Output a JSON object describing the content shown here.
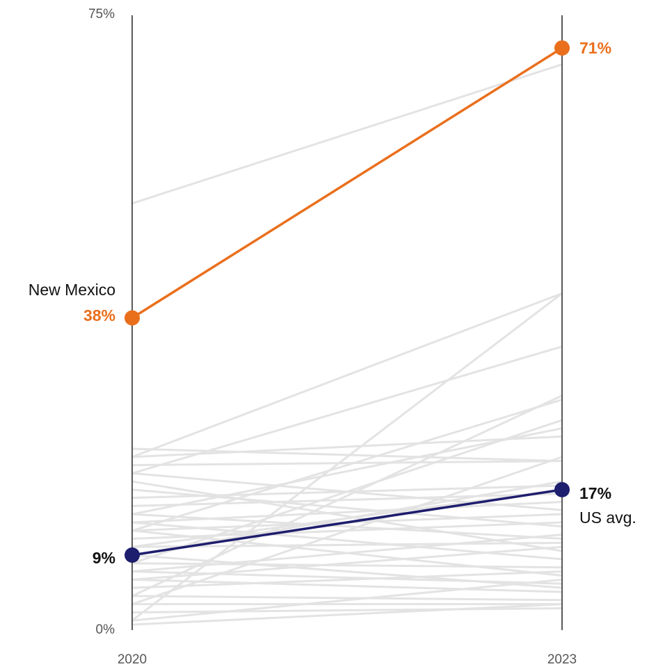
{
  "chart_data": {
    "type": "line",
    "x": [
      "2020",
      "2023"
    ],
    "ylim": [
      0,
      75
    ],
    "y_ticks": [
      "75%",
      "0%"
    ],
    "grid": false,
    "title": "",
    "xlabel": "",
    "ylabel": "",
    "highlight": [
      {
        "name": "New Mexico",
        "values": [
          38,
          71
        ],
        "labels": [
          "38%",
          "71%"
        ],
        "color": "#ea6f1c"
      },
      {
        "name": "US avg.",
        "values": [
          9,
          17
        ],
        "labels": [
          "9%",
          "17%"
        ],
        "color": "#1e1e6e"
      }
    ],
    "background_series": [
      [
        52,
        69
      ],
      [
        21,
        41
      ],
      [
        1,
        41
      ],
      [
        19,
        34.5
      ],
      [
        4,
        28.5
      ],
      [
        12,
        28
      ],
      [
        8,
        25.5
      ],
      [
        14,
        24.5
      ],
      [
        21,
        23.5
      ],
      [
        3,
        21
      ],
      [
        10,
        17
      ],
      [
        9,
        18
      ],
      [
        20,
        20.5
      ],
      [
        22,
        20.5
      ],
      [
        16,
        17.5
      ],
      [
        15,
        16.5
      ],
      [
        13,
        15.5
      ],
      [
        19,
        14.5
      ],
      [
        12,
        14
      ],
      [
        11,
        13
      ],
      [
        17,
        12.5
      ],
      [
        7,
        11.5
      ],
      [
        14,
        11
      ],
      [
        10,
        10.5
      ],
      [
        6,
        10
      ],
      [
        18,
        9.5
      ],
      [
        13,
        8.5
      ],
      [
        8,
        7.5
      ],
      [
        5,
        7
      ],
      [
        12,
        6.5
      ],
      [
        7,
        5.5
      ],
      [
        9,
        5
      ],
      [
        6,
        4.5
      ],
      [
        4,
        3.5
      ],
      [
        3,
        3
      ],
      [
        2,
        2.5
      ],
      [
        1,
        6
      ],
      [
        0.5,
        3
      ]
    ],
    "background_color": "#e3e3e3"
  }
}
